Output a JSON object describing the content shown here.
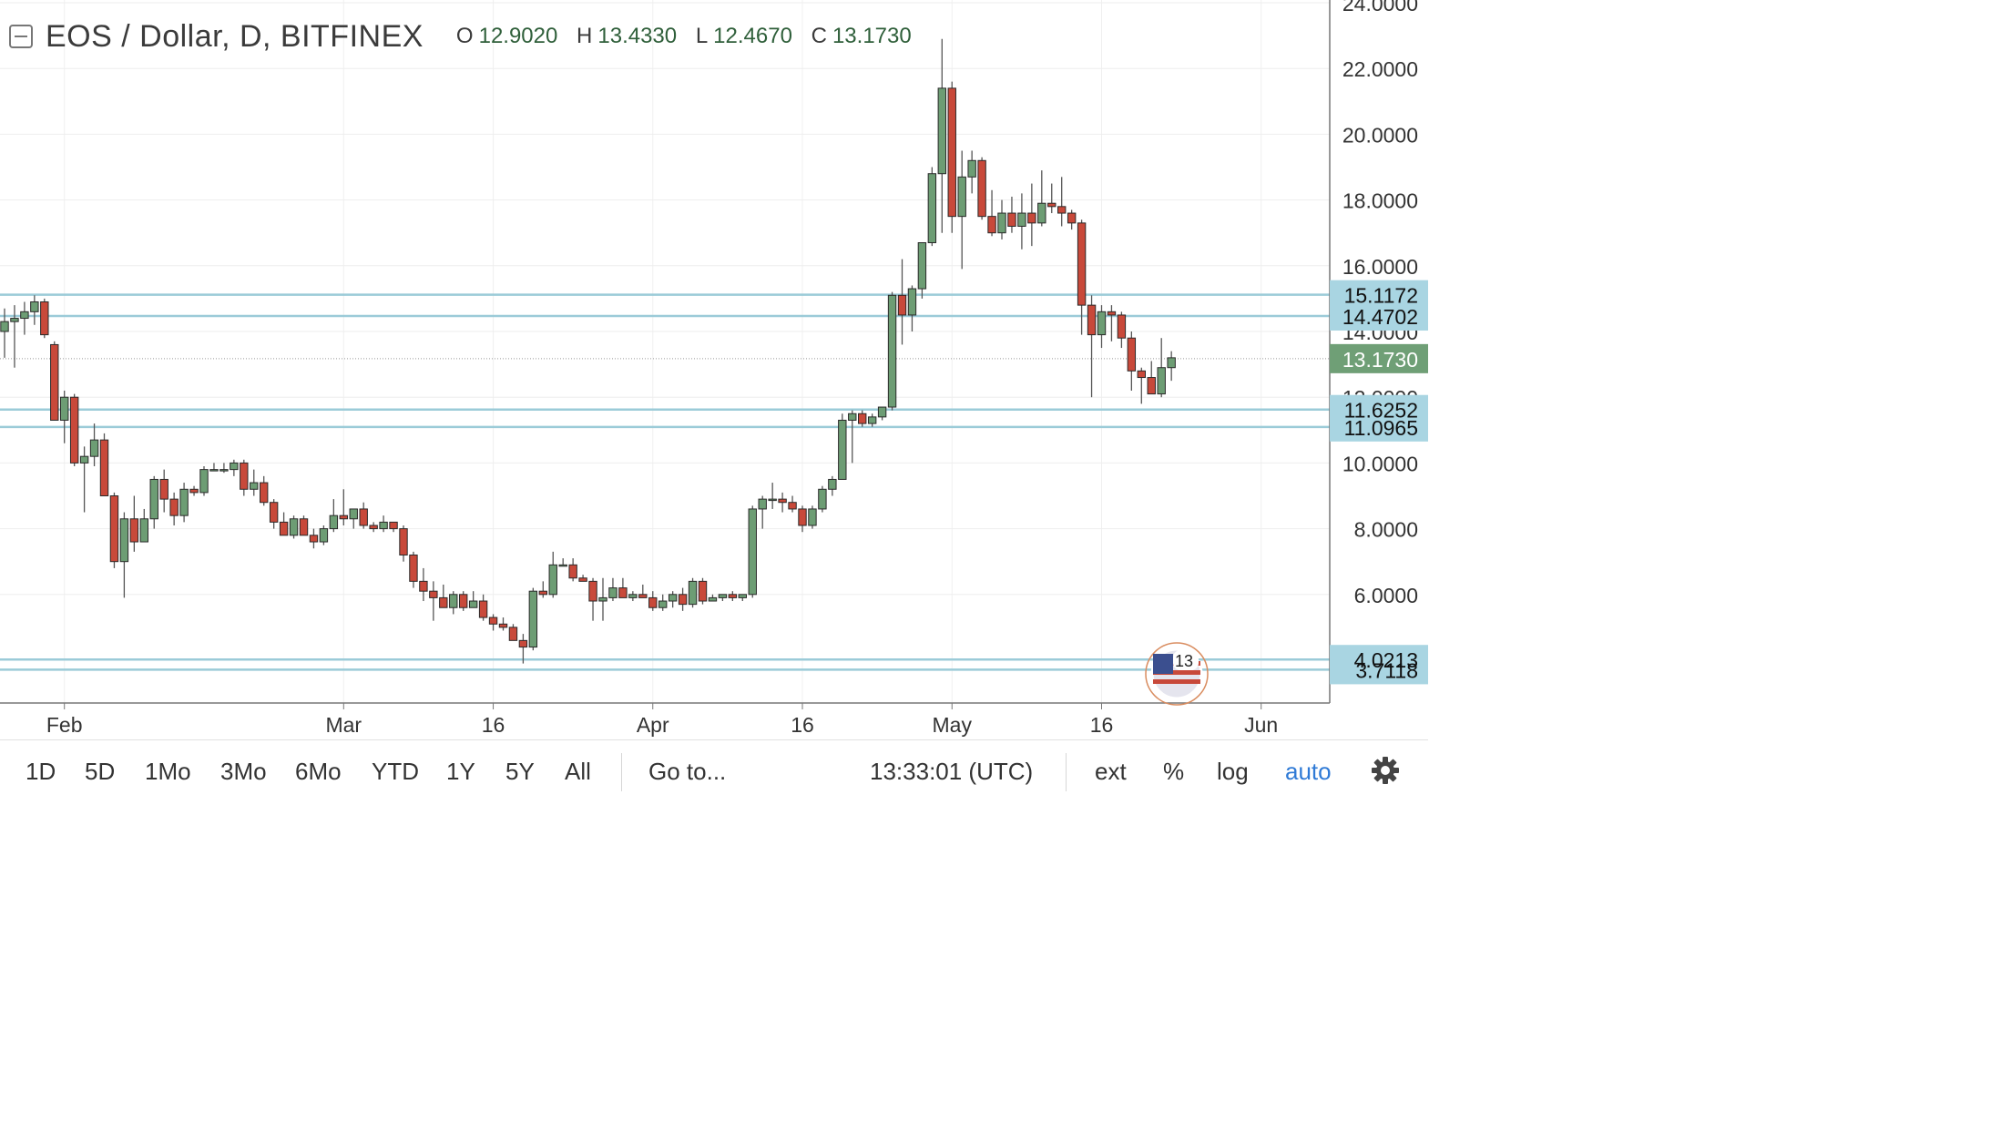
{
  "header": {
    "symbol": "EOS / Dollar, D, BITFINEX",
    "open_label": "O",
    "open": "12.9020",
    "high_label": "H",
    "high": "13.4330",
    "low_label": "L",
    "low": "12.4670",
    "close_label": "C",
    "close": "13.1730"
  },
  "toolbar": {
    "ranges": [
      "1D",
      "5D",
      "1Mo",
      "3Mo",
      "6Mo",
      "YTD",
      "1Y",
      "5Y",
      "All"
    ],
    "goto": "Go to...",
    "time": "13:33:01 (UTC)",
    "ext": "ext",
    "percent": "%",
    "log": "log",
    "auto": "auto",
    "settings_icon": "gear-icon"
  },
  "overlay_badge": {
    "text": "13",
    "icon": "us-flag-icon"
  },
  "colors": {
    "up": "#6d9d74",
    "down": "#c8493a",
    "level_line": "#9bcbd8",
    "level_label_bg": "#a9d5e2",
    "current_label_bg": "#6f9f76",
    "accent": "#2f7ad6"
  },
  "chart_data": {
    "type": "candlestick",
    "title": "EOS / Dollar, D, BITFINEX",
    "xlabel": "",
    "ylabel": "",
    "ylim": [
      1.4,
      24.0
    ],
    "y_ticks": [
      "4.0000",
      "6.0000",
      "8.0000",
      "10.0000",
      "12.0000",
      "14.0000",
      "16.0000",
      "18.0000",
      "20.0000",
      "22.0000",
      "24.0000"
    ],
    "x_ticks": [
      {
        "label": "Feb",
        "day": 6
      },
      {
        "label": "Mar",
        "day": 34
      },
      {
        "label": "16",
        "day": 49
      },
      {
        "label": "Apr",
        "day": 65
      },
      {
        "label": "16",
        "day": 80
      },
      {
        "label": "May",
        "day": 95
      },
      {
        "label": "16",
        "day": 110
      },
      {
        "label": "Jun",
        "day": 126
      }
    ],
    "horizontal_levels": [
      15.1172,
      14.4702,
      11.6252,
      11.0965,
      4.0213,
      3.7118
    ],
    "level_labels": [
      "15.1172",
      "14.4702",
      "11.6252",
      "11.0965",
      "4.0213",
      "3.7118"
    ],
    "last_price": 13.173,
    "last_price_label": "13.1730",
    "grid": true,
    "candles_ohlc": [
      [
        14.0,
        14.7,
        13.2,
        14.3
      ],
      [
        14.3,
        14.8,
        12.9,
        14.4
      ],
      [
        14.4,
        14.9,
        13.9,
        14.6
      ],
      [
        14.6,
        15.1,
        14.2,
        14.9
      ],
      [
        14.9,
        15.0,
        13.8,
        13.9
      ],
      [
        13.6,
        13.7,
        11.3,
        11.3
      ],
      [
        11.3,
        12.2,
        10.6,
        12.0
      ],
      [
        12.0,
        12.1,
        9.9,
        10.0
      ],
      [
        10.0,
        10.5,
        8.5,
        10.2
      ],
      [
        10.2,
        11.2,
        9.9,
        10.7
      ],
      [
        10.7,
        10.9,
        9.0,
        9.0
      ],
      [
        9.0,
        9.1,
        6.8,
        7.0
      ],
      [
        7.0,
        8.5,
        5.9,
        8.3
      ],
      [
        8.3,
        9.0,
        7.3,
        7.6
      ],
      [
        7.6,
        8.6,
        7.6,
        8.3
      ],
      [
        8.3,
        9.6,
        8.0,
        9.5
      ],
      [
        9.5,
        9.8,
        8.5,
        8.9
      ],
      [
        8.9,
        9.1,
        8.1,
        8.4
      ],
      [
        8.4,
        9.4,
        8.2,
        9.2
      ],
      [
        9.2,
        9.3,
        9.0,
        9.1
      ],
      [
        9.1,
        9.9,
        9.0,
        9.8
      ],
      [
        9.8,
        10.0,
        9.8,
        9.8
      ],
      [
        9.8,
        10.0,
        9.7,
        9.8
      ],
      [
        9.8,
        10.1,
        9.6,
        10.0
      ],
      [
        10.0,
        10.1,
        9.0,
        9.2
      ],
      [
        9.2,
        9.8,
        9.0,
        9.4
      ],
      [
        9.4,
        9.6,
        8.7,
        8.8
      ],
      [
        8.8,
        8.9,
        8.0,
        8.2
      ],
      [
        8.2,
        8.5,
        7.8,
        7.8
      ],
      [
        7.8,
        8.4,
        7.7,
        8.3
      ],
      [
        8.3,
        8.4,
        7.8,
        7.8
      ],
      [
        7.8,
        8.0,
        7.4,
        7.6
      ],
      [
        7.6,
        8.1,
        7.5,
        8.0
      ],
      [
        8.0,
        8.9,
        7.9,
        8.4
      ],
      [
        8.4,
        9.2,
        8.1,
        8.3
      ],
      [
        8.3,
        8.6,
        8.0,
        8.6
      ],
      [
        8.6,
        8.8,
        8.0,
        8.1
      ],
      [
        8.1,
        8.2,
        7.9,
        8.0
      ],
      [
        8.0,
        8.4,
        7.9,
        8.2
      ],
      [
        8.2,
        8.2,
        7.9,
        8.0
      ],
      [
        8.0,
        8.1,
        7.0,
        7.2
      ],
      [
        7.2,
        7.3,
        6.2,
        6.4
      ],
      [
        6.4,
        6.8,
        5.8,
        6.1
      ],
      [
        6.1,
        6.4,
        5.2,
        5.9
      ],
      [
        5.9,
        6.3,
        5.6,
        5.6
      ],
      [
        5.6,
        6.1,
        5.4,
        6.0
      ],
      [
        6.0,
        6.1,
        5.5,
        5.6
      ],
      [
        5.6,
        6.1,
        5.6,
        5.8
      ],
      [
        5.8,
        6.0,
        5.2,
        5.3
      ],
      [
        5.3,
        5.4,
        4.9,
        5.1
      ],
      [
        5.1,
        5.3,
        4.9,
        5.0
      ],
      [
        5.0,
        5.1,
        4.6,
        4.6
      ],
      [
        4.6,
        4.8,
        3.9,
        4.4
      ],
      [
        4.4,
        6.2,
        4.3,
        6.1
      ],
      [
        6.1,
        6.4,
        5.9,
        6.0
      ],
      [
        6.0,
        7.3,
        5.9,
        6.9
      ],
      [
        6.9,
        7.1,
        6.9,
        6.9
      ],
      [
        6.9,
        7.1,
        6.4,
        6.5
      ],
      [
        6.5,
        6.6,
        6.4,
        6.4
      ],
      [
        6.4,
        6.5,
        5.2,
        5.8
      ],
      [
        5.8,
        6.5,
        5.2,
        5.9
      ],
      [
        5.9,
        6.5,
        5.8,
        6.2
      ],
      [
        6.2,
        6.5,
        5.9,
        5.9
      ],
      [
        5.9,
        6.1,
        5.8,
        6.0
      ],
      [
        6.0,
        6.3,
        5.9,
        5.9
      ],
      [
        5.9,
        6.1,
        5.5,
        5.6
      ],
      [
        5.6,
        6.0,
        5.5,
        5.8
      ],
      [
        5.8,
        6.1,
        5.6,
        6.0
      ],
      [
        6.0,
        6.2,
        5.5,
        5.7
      ],
      [
        5.7,
        6.5,
        5.6,
        6.4
      ],
      [
        6.4,
        6.5,
        5.7,
        5.8
      ],
      [
        5.8,
        6.0,
        5.8,
        5.9
      ],
      [
        5.9,
        6.0,
        5.8,
        6.0
      ],
      [
        6.0,
        6.1,
        5.8,
        5.9
      ],
      [
        5.9,
        6.0,
        5.8,
        6.0
      ],
      [
        6.0,
        8.7,
        5.9,
        8.6
      ],
      [
        8.6,
        9.0,
        8.0,
        8.9
      ],
      [
        8.9,
        9.4,
        8.6,
        8.9
      ],
      [
        8.9,
        9.1,
        8.5,
        8.8
      ],
      [
        8.8,
        9.0,
        8.5,
        8.6
      ],
      [
        8.6,
        8.7,
        7.9,
        8.1
      ],
      [
        8.1,
        8.7,
        8.0,
        8.6
      ],
      [
        8.6,
        9.3,
        8.5,
        9.2
      ],
      [
        9.2,
        9.6,
        9.0,
        9.5
      ],
      [
        9.5,
        11.5,
        9.5,
        11.3
      ],
      [
        11.3,
        11.6,
        10.0,
        11.5
      ],
      [
        11.5,
        11.6,
        11.1,
        11.2
      ],
      [
        11.2,
        11.5,
        11.1,
        11.4
      ],
      [
        11.4,
        11.7,
        11.3,
        11.7
      ],
      [
        11.7,
        15.2,
        11.6,
        15.1
      ],
      [
        15.1,
        16.2,
        13.6,
        14.5
      ],
      [
        14.5,
        15.4,
        14.0,
        15.3
      ],
      [
        15.3,
        16.7,
        15.0,
        16.7
      ],
      [
        16.7,
        19.0,
        16.6,
        18.8
      ],
      [
        18.8,
        22.9,
        17.0,
        21.4
      ],
      [
        21.4,
        21.6,
        17.0,
        17.5
      ],
      [
        17.5,
        19.5,
        15.9,
        18.7
      ],
      [
        18.7,
        19.5,
        18.2,
        19.2
      ],
      [
        19.2,
        19.3,
        17.4,
        17.5
      ],
      [
        17.5,
        18.3,
        16.9,
        17.0
      ],
      [
        17.0,
        18.0,
        16.8,
        17.6
      ],
      [
        17.6,
        18.1,
        17.0,
        17.2
      ],
      [
        17.2,
        18.2,
        16.5,
        17.6
      ],
      [
        17.6,
        18.5,
        16.6,
        17.3
      ],
      [
        17.3,
        18.9,
        17.2,
        17.9
      ],
      [
        17.9,
        18.5,
        17.6,
        17.8
      ],
      [
        17.8,
        18.7,
        17.2,
        17.6
      ],
      [
        17.6,
        17.7,
        17.1,
        17.3
      ],
      [
        17.3,
        17.4,
        13.9,
        14.8
      ],
      [
        14.8,
        15.1,
        12.0,
        13.9
      ],
      [
        13.9,
        14.8,
        13.5,
        14.6
      ],
      [
        14.6,
        14.8,
        13.7,
        14.5
      ],
      [
        14.5,
        14.6,
        13.5,
        13.8
      ],
      [
        13.8,
        14.0,
        12.2,
        12.8
      ],
      [
        12.8,
        12.9,
        11.8,
        12.6
      ],
      [
        12.6,
        13.1,
        12.1,
        12.1
      ],
      [
        12.1,
        13.8,
        12.0,
        12.9
      ],
      [
        12.9,
        13.4,
        12.5,
        13.2
      ]
    ]
  }
}
